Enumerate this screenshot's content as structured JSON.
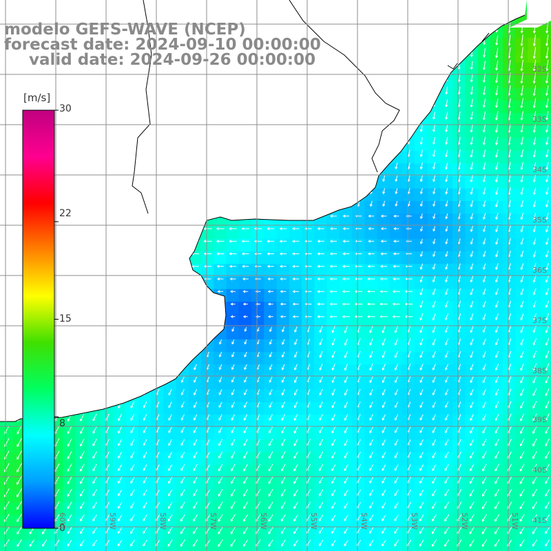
{
  "titles": {
    "model": "modelo GEFS-WAVE (NCEP)",
    "forecast": "forecast date: 2024-09-10 00:00:00",
    "valid": "valid date: 2024-09-26 00:00:00"
  },
  "colorbar": {
    "unit": "[m/s]",
    "ticks": [
      {
        "label": "30",
        "value": 30
      },
      {
        "label": "22",
        "value": 22
      },
      {
        "label": "15",
        "value": 15
      },
      {
        "label": "8",
        "value": 8
      },
      {
        "label": "0",
        "value": 0
      }
    ],
    "colors": [
      "#0000ff",
      "#00a0ff",
      "#00ffff",
      "#00ff60",
      "#40e000",
      "#ffff00",
      "#ff8000",
      "#ff0000",
      "#ff0090",
      "#c00080"
    ]
  },
  "grid": {
    "lat_labels": [
      "32S",
      "33S",
      "34S",
      "35S",
      "36S",
      "37S",
      "38S",
      "39S",
      "40S",
      "41S"
    ],
    "lon_labels": [
      "60W",
      "59W",
      "58W",
      "57W",
      "56W",
      "55W",
      "54W",
      "53W",
      "52W",
      "51W"
    ]
  },
  "colors": {
    "land": "#ffffff",
    "coast": "#000000",
    "grid": "#8c8c8c",
    "title": "#8a8a8a",
    "arrow": "#ffffff"
  }
}
